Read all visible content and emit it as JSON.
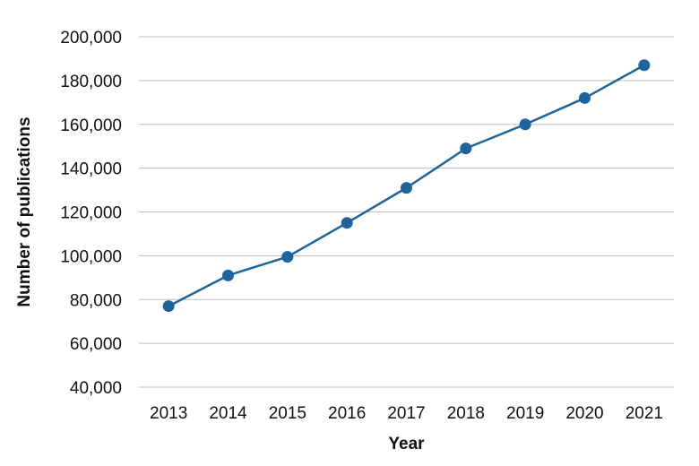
{
  "chart_data": {
    "type": "line",
    "title": "",
    "xlabel": "Year",
    "ylabel": "Number of publications",
    "x": [
      "2013",
      "2014",
      "2015",
      "2016",
      "2017",
      "2018",
      "2019",
      "2020",
      "2021"
    ],
    "series": [
      {
        "values": [
          77000,
          91000,
          99500,
          115000,
          131000,
          149000,
          160000,
          172000,
          187000
        ]
      }
    ],
    "ylim": [
      40000,
      200000
    ],
    "yticks": [
      "40,000",
      "60,000",
      "80,000",
      "100,000",
      "120,000",
      "140,000",
      "160,000",
      "180,000",
      "200,000"
    ],
    "ytick_values": [
      40000,
      60000,
      80000,
      100000,
      120000,
      140000,
      160000,
      180000,
      200000
    ],
    "grid": "horizontal",
    "legend": "none",
    "colors": {
      "line": "#1f6499",
      "marker": "#1f6499",
      "grid": "#bdbdbd",
      "text": "#111111"
    }
  }
}
